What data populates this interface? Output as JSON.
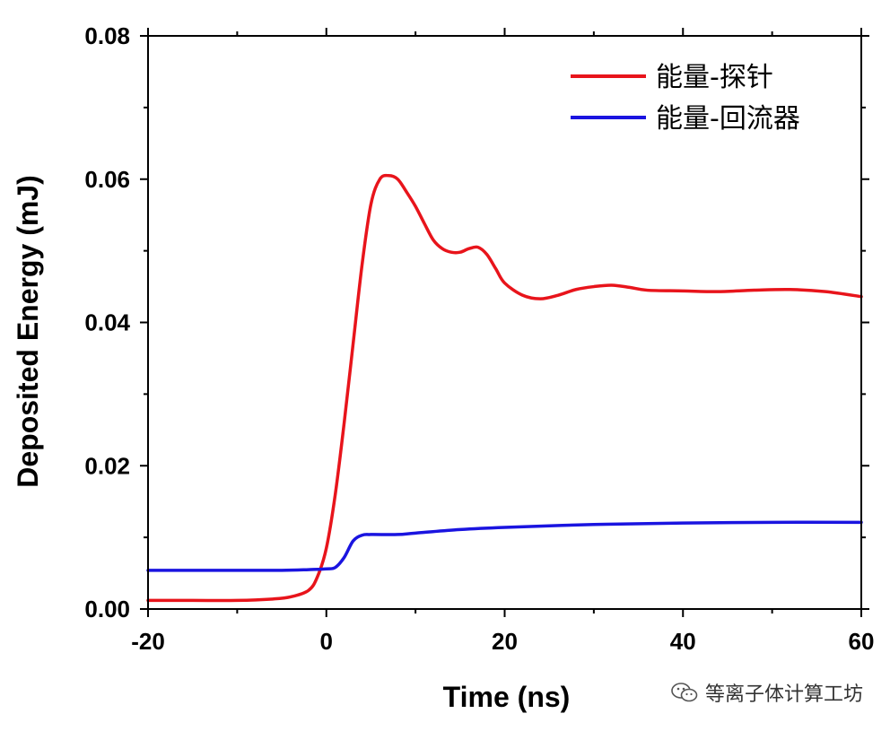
{
  "chart_data": {
    "type": "line",
    "xlabel": "Time (ns)",
    "ylabel": "Deposited Energy (mJ)",
    "xlim": [
      -20,
      60
    ],
    "ylim": [
      0,
      0.08
    ],
    "xticks": [
      -20,
      0,
      20,
      40,
      60
    ],
    "xtick_labels": [
      "-20",
      "0",
      "20",
      "40",
      "60"
    ],
    "yticks": [
      0,
      0.02,
      0.04,
      0.06,
      0.08
    ],
    "ytick_labels": [
      "0.00",
      "0.02",
      "0.04",
      "0.06",
      "0.08"
    ],
    "legend_position": "top-right",
    "series": [
      {
        "name": "能量-探针",
        "color": "#e8141b",
        "x": [
          -20,
          -15,
          -10,
          -6,
          -4,
          -2,
          -1,
          0,
          1,
          2,
          3,
          4,
          5,
          6,
          7,
          8,
          9,
          10,
          11,
          12,
          13,
          14,
          15,
          16,
          17,
          18,
          19,
          20,
          22,
          24,
          26,
          28,
          30,
          32,
          34,
          36,
          40,
          44,
          48,
          52,
          56,
          60
        ],
        "y": [
          0.0012,
          0.0012,
          0.0012,
          0.0014,
          0.0017,
          0.0026,
          0.0045,
          0.0085,
          0.016,
          0.026,
          0.037,
          0.048,
          0.0565,
          0.06,
          0.0605,
          0.06,
          0.0582,
          0.0562,
          0.0538,
          0.0515,
          0.0503,
          0.0498,
          0.0498,
          0.0503,
          0.0505,
          0.0495,
          0.0475,
          0.0455,
          0.0438,
          0.0433,
          0.0438,
          0.0446,
          0.045,
          0.0452,
          0.0449,
          0.0445,
          0.0444,
          0.0443,
          0.0445,
          0.0446,
          0.0443,
          0.0436
        ]
      },
      {
        "name": "能量-回流器",
        "color": "#1a14e0",
        "x": [
          -20,
          -10,
          -5,
          -2,
          0,
          1,
          2,
          3,
          4,
          5,
          8,
          10,
          15,
          20,
          30,
          40,
          50,
          60
        ],
        "y": [
          0.0054,
          0.0054,
          0.0054,
          0.0055,
          0.0056,
          0.0058,
          0.0072,
          0.0095,
          0.0103,
          0.0104,
          0.0104,
          0.0106,
          0.0111,
          0.0114,
          0.0118,
          0.012,
          0.0121,
          0.0121
        ]
      }
    ]
  },
  "watermark": {
    "icon": "wechat-icon",
    "text": "等离子体计算工坊"
  }
}
